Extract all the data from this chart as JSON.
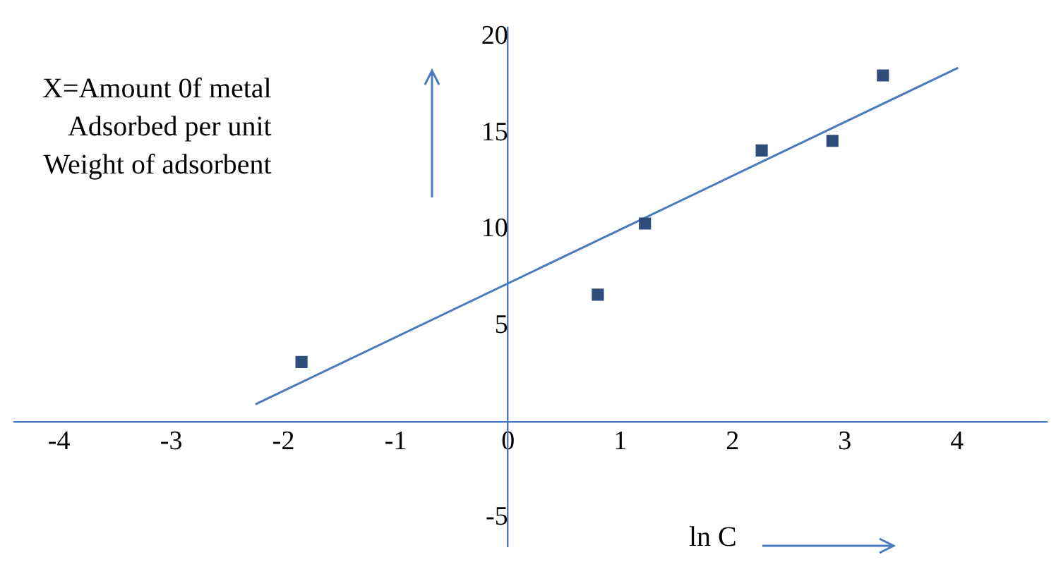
{
  "chart_data": {
    "type": "scatter",
    "xlabel": "ln C",
    "ylabel": "X=Amount 0f metal\nAdsorbed per unit\nWeight of adsorbent",
    "series": [
      {
        "type": "scatter",
        "color": "#2e4d7a",
        "x": [
          -1.84,
          0.8,
          1.22,
          2.26,
          2.89,
          3.34
        ],
        "values": [
          3.1,
          6.6,
          10.3,
          14.1,
          14.6,
          18.0
        ],
        "marker": "square"
      },
      {
        "type": "line",
        "color": "#4a7bbf",
        "x": [
          -2.25,
          4.01
        ],
        "values": [
          0.9,
          18.4
        ],
        "marker": "none"
      }
    ],
    "xlim": [
      -4.4,
      4.8
    ],
    "ylim": [
      -6.5,
      20.5
    ],
    "xticks": [
      -4,
      -3,
      -2,
      -1,
      0,
      1,
      2,
      3,
      4
    ],
    "yticks": [
      -5,
      5,
      10,
      15,
      20
    ],
    "grid": false
  }
}
